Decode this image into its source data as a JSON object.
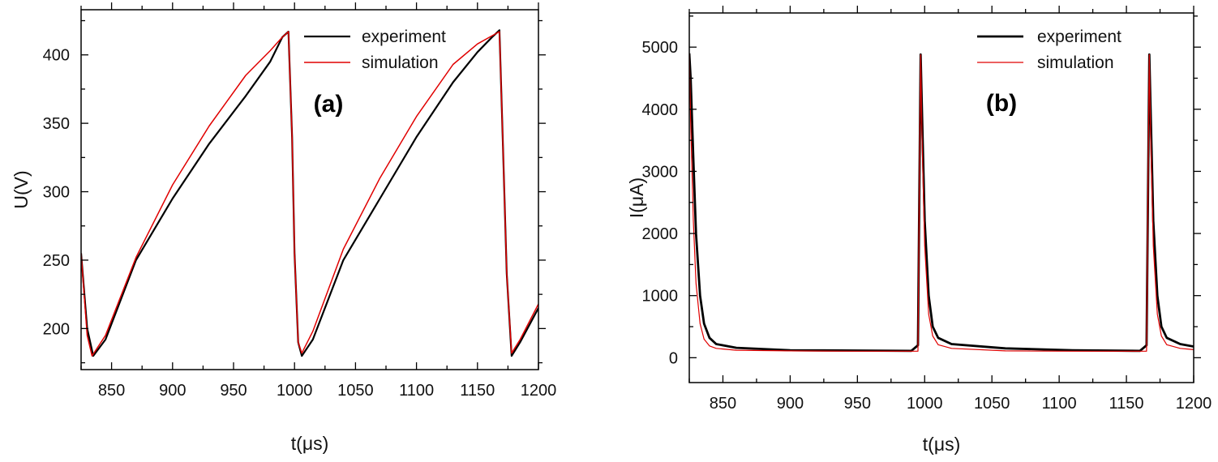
{
  "chart_data": [
    {
      "type": "line",
      "panel_label": "(a)",
      "xlabel": "t(μs)",
      "ylabel": "U(V)",
      "xlim": [
        825,
        1200
      ],
      "ylim": [
        170,
        433
      ],
      "xticks": [
        850,
        900,
        950,
        1000,
        1050,
        1100,
        1150,
        1200
      ],
      "yticks": [
        200,
        250,
        300,
        350,
        400
      ],
      "legend_position": "top-right",
      "grid": false,
      "series": [
        {
          "name": "experiment",
          "color": "#000000",
          "x": [
            825,
            830,
            835,
            845,
            870,
            900,
            930,
            960,
            980,
            990,
            995,
            998,
            1000,
            1003,
            1006,
            1015,
            1040,
            1070,
            1100,
            1130,
            1150,
            1162,
            1168,
            1171,
            1174,
            1178,
            1185,
            1200
          ],
          "y": [
            255,
            200,
            180,
            192,
            250,
            295,
            335,
            370,
            395,
            413,
            417,
            340,
            255,
            190,
            180,
            192,
            250,
            295,
            340,
            380,
            402,
            413,
            418,
            330,
            240,
            180,
            190,
            215
          ]
        },
        {
          "name": "simulation",
          "color": "#e00000",
          "x": [
            825,
            830,
            834,
            845,
            870,
            900,
            930,
            960,
            980,
            990,
            995,
            998,
            1000,
            1003,
            1006,
            1015,
            1040,
            1070,
            1100,
            1130,
            1150,
            1162,
            1168,
            1171,
            1174,
            1178,
            1185,
            1200
          ],
          "y": [
            255,
            195,
            180,
            195,
            252,
            305,
            348,
            385,
            403,
            413,
            417,
            340,
            255,
            190,
            182,
            198,
            258,
            310,
            355,
            393,
            408,
            414,
            417,
            330,
            240,
            182,
            192,
            218
          ]
        }
      ]
    },
    {
      "type": "line",
      "panel_label": "(b)",
      "xlabel": "t(μs)",
      "ylabel": "I(μA)",
      "xlim": [
        825,
        1200
      ],
      "ylim": [
        -400,
        5550
      ],
      "xticks": [
        850,
        900,
        950,
        1000,
        1050,
        1100,
        1150,
        1200
      ],
      "yticks": [
        0,
        1000,
        2000,
        3000,
        4000,
        5000
      ],
      "legend_position": "top-right",
      "grid": false,
      "series": [
        {
          "name": "experiment",
          "color": "#000000",
          "x": [
            825,
            826,
            828,
            830,
            833,
            836,
            840,
            845,
            860,
            900,
            950,
            990,
            995,
            996,
            997,
            998,
            1000,
            1003,
            1006,
            1010,
            1020,
            1060,
            1110,
            1160,
            1165,
            1166,
            1167,
            1168,
            1170,
            1173,
            1176,
            1180,
            1190,
            1200
          ],
          "y": [
            4900,
            4500,
            3200,
            2000,
            1000,
            550,
            320,
            220,
            160,
            120,
            115,
            110,
            200,
            2500,
            4880,
            4000,
            2200,
            1000,
            500,
            320,
            220,
            150,
            120,
            110,
            200,
            2500,
            4880,
            4000,
            2200,
            1000,
            500,
            320,
            220,
            180
          ]
        },
        {
          "name": "simulation",
          "color": "#e00000",
          "x": [
            825,
            826,
            828,
            830,
            833,
            836,
            840,
            845,
            860,
            900,
            950,
            995,
            996,
            997,
            998,
            1000,
            1003,
            1006,
            1010,
            1020,
            1060,
            1110,
            1165,
            1166,
            1167,
            1168,
            1170,
            1173,
            1176,
            1180,
            1190,
            1200
          ],
          "y": [
            4900,
            3800,
            2200,
            1200,
            550,
            300,
            190,
            150,
            120,
            110,
            105,
            105,
            2600,
            4880,
            3600,
            1800,
            700,
            350,
            210,
            150,
            110,
            105,
            105,
            2600,
            4880,
            3600,
            1800,
            700,
            350,
            210,
            150,
            130
          ]
        }
      ]
    }
  ]
}
